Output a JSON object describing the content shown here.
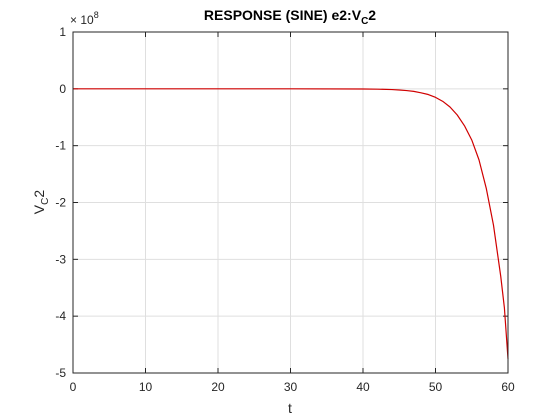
{
  "chart_data": {
    "type": "line",
    "title": "RESPONSE (SINE) e2:V",
    "title_subscript": "C",
    "title_suffix": "2",
    "xlabel": "t",
    "ylabel": "V",
    "ylabel_subscript": "C",
    "ylabel_suffix": "2",
    "y_scale_base": "× 10",
    "y_scale_exponent": "8",
    "xlim": [
      0,
      60
    ],
    "ylim": [
      -5,
      1
    ],
    "xticks": [
      0,
      10,
      20,
      30,
      40,
      50,
      60
    ],
    "yticks": [
      1,
      0,
      -1,
      -2,
      -3,
      -4,
      -5
    ],
    "xtick_labels": [
      "0",
      "10",
      "20",
      "30",
      "40",
      "50",
      "60"
    ],
    "ytick_labels": [
      "1",
      "0",
      "-1",
      "-2",
      "-3",
      "-4",
      "-5"
    ],
    "grid": true,
    "series": [
      {
        "color": "#d00000",
        "x": [
          0,
          10,
          20,
          30,
          40,
          42,
          44,
          45,
          46,
          47,
          48,
          49,
          50,
          51,
          52,
          53,
          54,
          55,
          56,
          57,
          58,
          59,
          59.5,
          60
        ],
        "y": [
          0,
          0,
          0,
          0,
          -0.003,
          -0.006,
          -0.013,
          -0.02,
          -0.03,
          -0.045,
          -0.07,
          -0.1,
          -0.15,
          -0.22,
          -0.32,
          -0.46,
          -0.65,
          -0.9,
          -1.25,
          -1.75,
          -2.4,
          -3.3,
          -3.85,
          -4.75
        ]
      }
    ]
  }
}
